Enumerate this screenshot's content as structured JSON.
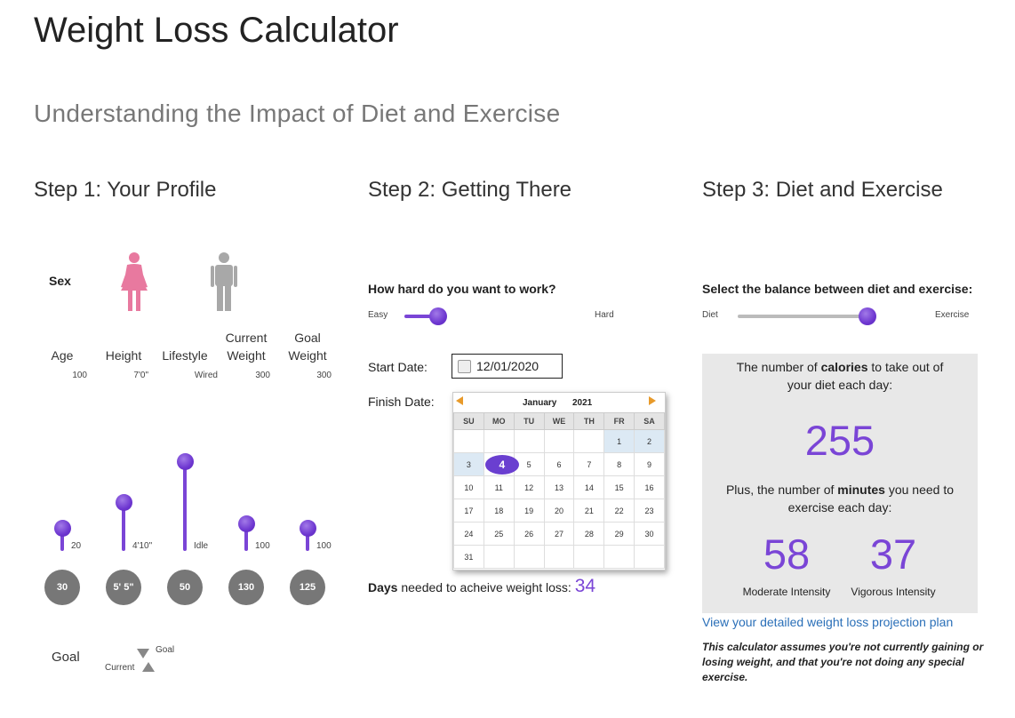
{
  "title": "Weight Loss Calculator",
  "subtitle": "Understanding the Impact of Diet and Exercise",
  "step1": {
    "heading": "Step 1: Your Profile",
    "sex_label": "Sex",
    "columns": [
      {
        "label": "Age",
        "max": "100",
        "min": "20",
        "value": "30"
      },
      {
        "label": "Height",
        "max": "7'0\"",
        "min": "4'10\"",
        "value": "5' 5\""
      },
      {
        "label": "Lifestyle",
        "max": "Wired",
        "min": "Idle",
        "value": "50"
      },
      {
        "label": "Current Weight",
        "max": "300",
        "min": "100",
        "value": "130"
      },
      {
        "label": "Goal Weight",
        "max": "300",
        "min": "100",
        "value": "125"
      }
    ],
    "goal_label": "Goal",
    "legend_goal": "Goal",
    "legend_current": "Current"
  },
  "step2": {
    "heading": "Step 2: Getting There",
    "question": "How hard do you want to work?",
    "easy": "Easy",
    "hard": "Hard",
    "effort_level": 0.19,
    "start_label": "Start Date:",
    "start_value": "12/01/2020",
    "finish_label": "Finish Date:",
    "calendar": {
      "month": "January",
      "year": "2021",
      "weekdays": [
        "SU",
        "MO",
        "TU",
        "WE",
        "TH",
        "FR",
        "SA"
      ],
      "weeks": [
        [
          "",
          "",
          "",
          "",
          "",
          "1",
          "2"
        ],
        [
          "3",
          "4",
          "5",
          "6",
          "7",
          "8",
          "9"
        ],
        [
          "10",
          "11",
          "12",
          "13",
          "14",
          "15",
          "16"
        ],
        [
          "17",
          "18",
          "19",
          "20",
          "21",
          "22",
          "23"
        ],
        [
          "24",
          "25",
          "26",
          "27",
          "28",
          "29",
          "30"
        ],
        [
          "31",
          "",
          "",
          "",
          "",
          "",
          ""
        ]
      ],
      "selected_day": "4"
    },
    "days_bold": "Days",
    "days_text": " needed to acheive weight loss: ",
    "days_value": "34"
  },
  "step3": {
    "heading": "Step 3: Diet and Exercise",
    "question": "Select the balance between diet and exercise:",
    "diet": "Diet",
    "exercise": "Exercise",
    "balance_level": 0.73,
    "calories_pre": "The number of ",
    "calories_bold": "calories",
    "calories_post": " to take out of",
    "calories_line2": "your diet each day:",
    "calories_value": "255",
    "minutes_pre": "Plus, the number of ",
    "minutes_bold": "minutes",
    "minutes_post": " you need to",
    "minutes_line2": "exercise each day:",
    "moderate_value": "58",
    "vigorous_value": "37",
    "moderate_label": "Moderate Intensity",
    "vigorous_label": "Vigorous Intensity",
    "link": "View your detailed weight loss projection plan",
    "disclaimer": "This calculator assumes you're not currently gaining or losing weight, and that you're not doing any special exercise."
  },
  "colors": {
    "accent": "#7a45d6",
    "female": "#e8799f",
    "male": "#a8a8a8",
    "link": "#2a6fb8"
  }
}
